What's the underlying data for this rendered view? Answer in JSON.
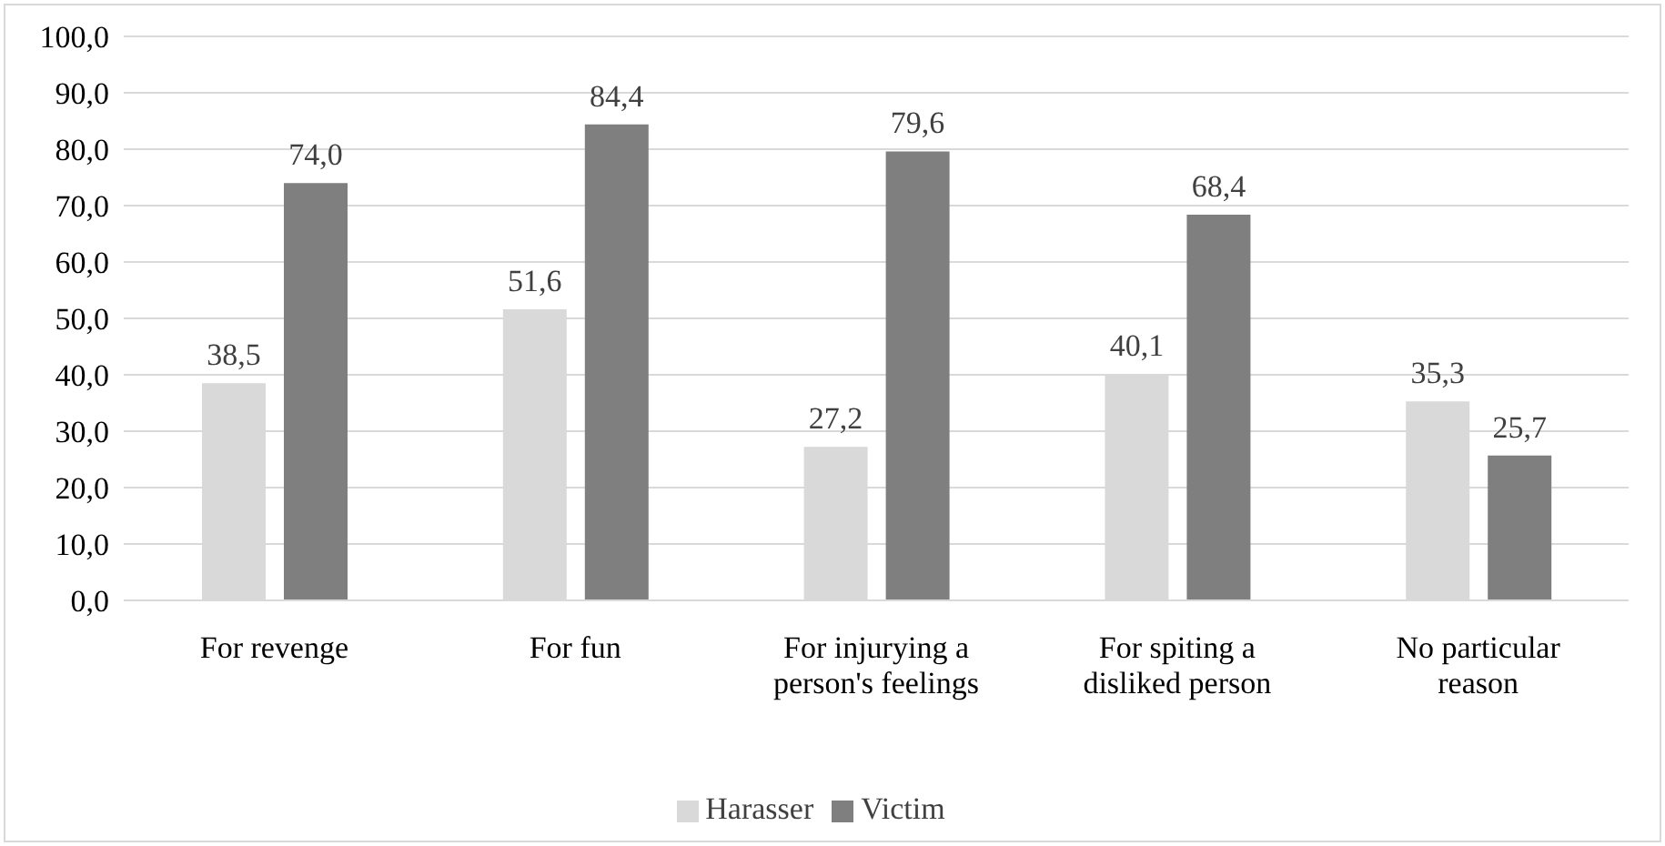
{
  "chart_data": {
    "type": "bar",
    "categories": [
      "For revenge",
      "For fun",
      "For injurying a person's feelings",
      "For spiting a disliked person",
      "No particular reason"
    ],
    "series": [
      {
        "name": "Harasser",
        "color": "#d9d9d9",
        "values": [
          38.5,
          51.6,
          27.2,
          40.1,
          35.3
        ],
        "value_labels": [
          "38,5",
          "51,6",
          "27,2",
          "40,1",
          "35,3"
        ]
      },
      {
        "name": "Victim",
        "color": "#7f7f7f",
        "values": [
          74.0,
          84.4,
          79.6,
          68.4,
          25.7
        ],
        "value_labels": [
          "74,0",
          "84,4",
          "79,6",
          "68,4",
          "25,7"
        ]
      }
    ],
    "ylim": [
      0,
      100
    ],
    "yticks": [
      {
        "value": 0,
        "label": "0,0"
      },
      {
        "value": 10,
        "label": "10,0"
      },
      {
        "value": 20,
        "label": "20,0"
      },
      {
        "value": 30,
        "label": "30,0"
      },
      {
        "value": 40,
        "label": "40,0"
      },
      {
        "value": 50,
        "label": "50,0"
      },
      {
        "value": 60,
        "label": "60,0"
      },
      {
        "value": 70,
        "label": "70,0"
      },
      {
        "value": 80,
        "label": "80,0"
      },
      {
        "value": 90,
        "label": "90,0"
      },
      {
        "value": 100,
        "label": "100,0"
      }
    ],
    "grid": "y",
    "legend": "bottom"
  }
}
